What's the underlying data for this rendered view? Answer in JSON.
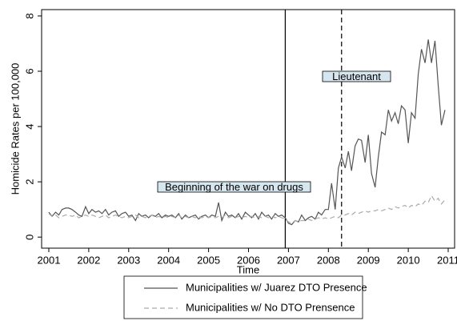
{
  "chart_data": {
    "type": "line",
    "y_label": "Homicide Rates per 100,000",
    "x_label": "Time",
    "xlim": [
      2000.82,
      2011.16
    ],
    "ylim": [
      -0.4,
      8.23
    ],
    "xticks": [
      2001,
      2002,
      2003,
      2004,
      2005,
      2006,
      2007,
      2008,
      2009,
      2010,
      2011
    ],
    "yticks": [
      0,
      2,
      4,
      6,
      8
    ],
    "grid": false,
    "legend": "bottom",
    "x": [
      2001,
      2001.08,
      2001.17,
      2001.25,
      2001.33,
      2001.42,
      2001.5,
      2001.58,
      2001.67,
      2001.75,
      2001.83,
      2001.92,
      2002,
      2002.08,
      2002.17,
      2002.25,
      2002.33,
      2002.42,
      2002.5,
      2002.58,
      2002.67,
      2002.75,
      2002.83,
      2002.92,
      2003,
      2003.08,
      2003.17,
      2003.25,
      2003.33,
      2003.42,
      2003.5,
      2003.58,
      2003.67,
      2003.75,
      2003.83,
      2003.92,
      2004,
      2004.08,
      2004.17,
      2004.25,
      2004.33,
      2004.42,
      2004.5,
      2004.58,
      2004.67,
      2004.75,
      2004.83,
      2004.92,
      2005,
      2005.08,
      2005.17,
      2005.25,
      2005.33,
      2005.42,
      2005.5,
      2005.58,
      2005.67,
      2005.75,
      2005.83,
      2005.92,
      2006,
      2006.08,
      2006.17,
      2006.25,
      2006.33,
      2006.42,
      2006.5,
      2006.58,
      2006.67,
      2006.75,
      2006.83,
      2006.92,
      2007,
      2007.08,
      2007.17,
      2007.25,
      2007.33,
      2007.42,
      2007.5,
      2007.58,
      2007.67,
      2007.75,
      2007.83,
      2007.92,
      2008,
      2008.08,
      2008.17,
      2008.25,
      2008.33,
      2008.42,
      2008.5,
      2008.58,
      2008.67,
      2008.75,
      2008.83,
      2008.92,
      2009,
      2009.08,
      2009.17,
      2009.25,
      2009.33,
      2009.42,
      2009.5,
      2009.58,
      2009.67,
      2009.75,
      2009.83,
      2009.92,
      2010,
      2010.08,
      2010.17,
      2010.25,
      2010.33,
      2010.42,
      2010.5,
      2010.58,
      2010.67,
      2010.75,
      2010.83,
      2010.92
    ],
    "series": [
      {
        "name": "Municipalities w/ Juarez DTO Presence",
        "color": "#555555",
        "style": "solid",
        "values": [
          0.9,
          0.75,
          0.9,
          0.8,
          1.0,
          1.05,
          1.05,
          1.0,
          0.9,
          0.8,
          0.75,
          1.1,
          0.85,
          1.0,
          0.9,
          0.95,
          0.85,
          1.0,
          0.8,
          0.9,
          0.95,
          0.75,
          0.85,
          0.9,
          0.75,
          0.8,
          0.6,
          0.85,
          0.75,
          0.8,
          0.7,
          0.8,
          0.75,
          0.85,
          0.7,
          0.8,
          0.75,
          0.8,
          0.7,
          0.85,
          0.65,
          0.8,
          0.7,
          0.75,
          0.8,
          0.65,
          0.75,
          0.8,
          0.7,
          0.8,
          0.75,
          1.25,
          0.6,
          0.9,
          0.75,
          0.8,
          0.7,
          0.85,
          0.65,
          0.9,
          0.8,
          0.7,
          0.85,
          0.65,
          0.9,
          0.75,
          0.8,
          0.65,
          0.85,
          0.75,
          0.8,
          0.7,
          0.5,
          0.45,
          0.6,
          0.55,
          0.8,
          0.6,
          0.7,
          0.75,
          0.65,
          0.9,
          0.8,
          1.0,
          1.0,
          1.95,
          1.0,
          2.5,
          2.9,
          2.5,
          3.1,
          2.4,
          3.3,
          3.55,
          3.5,
          2.7,
          3.7,
          2.3,
          1.8,
          2.9,
          3.8,
          3.7,
          4.6,
          4.2,
          4.5,
          4.1,
          4.75,
          4.6,
          3.4,
          4.5,
          4.3,
          5.9,
          6.8,
          6.3,
          7.15,
          6.3,
          7.1,
          5.5,
          4.05,
          4.6
        ]
      },
      {
        "name": "Municipalities w/ No DTO Prensence",
        "color": "#aaaaaa",
        "style": "dashed",
        "values": [
          0.85,
          0.75,
          0.8,
          0.7,
          0.75,
          0.8,
          0.8,
          0.75,
          0.8,
          0.7,
          0.75,
          0.8,
          0.75,
          0.8,
          0.75,
          0.7,
          0.75,
          0.8,
          0.7,
          0.75,
          0.8,
          0.75,
          0.7,
          0.75,
          0.7,
          0.75,
          0.8,
          0.7,
          0.75,
          0.7,
          0.75,
          0.8,
          0.7,
          0.75,
          0.7,
          0.75,
          0.7,
          0.75,
          0.7,
          0.8,
          0.7,
          0.75,
          0.7,
          0.75,
          0.7,
          0.75,
          0.7,
          0.75,
          0.7,
          0.75,
          0.7,
          0.75,
          0.7,
          0.8,
          0.7,
          0.75,
          0.7,
          0.75,
          0.7,
          0.75,
          0.7,
          0.75,
          0.7,
          0.75,
          0.7,
          0.75,
          0.7,
          0.75,
          0.7,
          0.75,
          0.7,
          0.65,
          0.55,
          0.5,
          0.6,
          0.55,
          0.6,
          0.6,
          0.65,
          0.6,
          0.65,
          0.7,
          0.65,
          0.7,
          0.65,
          0.7,
          0.75,
          0.7,
          0.8,
          0.8,
          0.85,
          0.8,
          0.9,
          0.85,
          0.9,
          0.95,
          0.9,
          0.95,
          0.95,
          1.0,
          0.95,
          1.0,
          1.05,
          1.0,
          1.1,
          1.05,
          1.1,
          1.15,
          1.05,
          1.15,
          1.1,
          1.2,
          1.15,
          1.3,
          1.25,
          1.5,
          1.3,
          1.4,
          1.2,
          1.35
        ]
      }
    ],
    "annotations": [
      {
        "text": "Beginning of the war on drugs",
        "x": 2006.92,
        "style": "solid"
      },
      {
        "text": "Lieutenant",
        "x": 2008.33,
        "style": "dashed"
      }
    ]
  }
}
